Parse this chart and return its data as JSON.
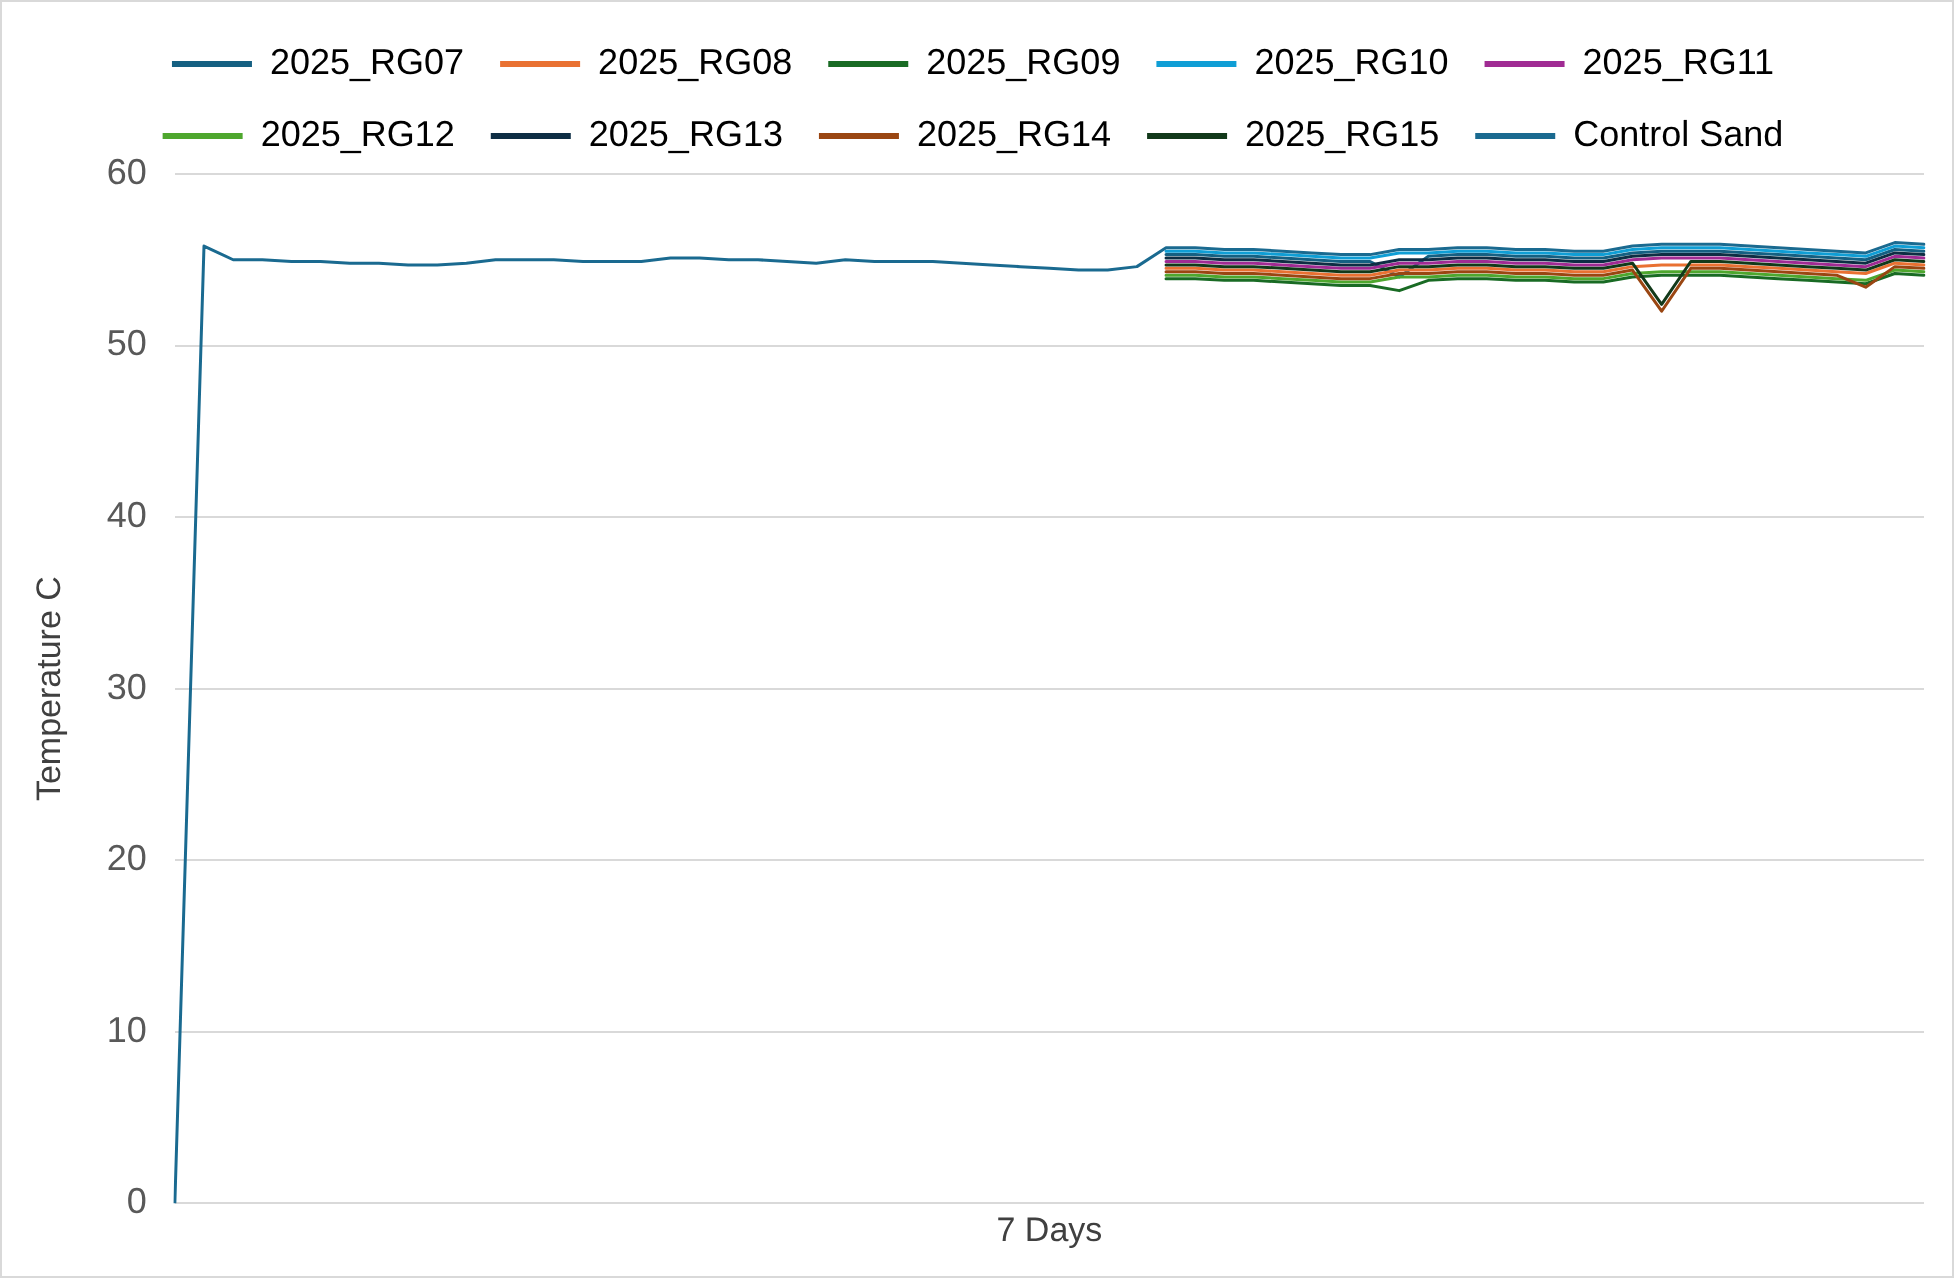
{
  "chart_data": {
    "type": "line",
    "ylabel": "Temperature C",
    "xlabel": "7 Days",
    "categories": [
      null,
      null,
      null,
      null,
      null,
      null,
      null,
      null,
      null,
      null,
      null,
      null,
      null,
      null,
      null,
      null,
      null,
      null,
      null,
      null,
      null,
      null,
      null,
      null,
      null,
      null,
      null,
      null,
      null,
      null,
      null,
      null,
      null,
      null,
      null,
      null,
      null,
      null,
      null,
      null,
      null,
      null,
      null,
      null,
      null,
      null,
      null,
      null,
      null,
      null,
      null,
      null,
      null,
      null,
      null,
      null,
      null,
      null,
      null,
      null,
      null
    ],
    "ylim": [
      0,
      60
    ],
    "yticks": [
      0,
      10,
      20,
      30,
      40,
      50,
      60
    ],
    "grid": "y",
    "legend": "top",
    "marker": "none",
    "line_style": "solid",
    "tick_labels": "y",
    "series": [
      {
        "name": "2025_RG07",
        "color": "#156082",
        "values": [
          null,
          null,
          null,
          null,
          null,
          null,
          null,
          null,
          null,
          null,
          null,
          null,
          null,
          null,
          null,
          null,
          null,
          null,
          null,
          null,
          null,
          null,
          null,
          null,
          null,
          null,
          null,
          null,
          null,
          null,
          null,
          null,
          null,
          null,
          55.3,
          55.3,
          55.2,
          55.2,
          55.1,
          55.0,
          54.9,
          54.9,
          54.0,
          55.2,
          55.3,
          55.3,
          55.2,
          55.2,
          55.1,
          55.1,
          55.4,
          55.5,
          55.5,
          55.5,
          55.4,
          55.3,
          55.2,
          55.1,
          55.0,
          55.6,
          55.5
        ]
      },
      {
        "name": "2025_RG08",
        "color": "#e97132",
        "values": [
          null,
          null,
          null,
          null,
          null,
          null,
          null,
          null,
          null,
          null,
          null,
          null,
          null,
          null,
          null,
          null,
          null,
          null,
          null,
          null,
          null,
          null,
          null,
          null,
          null,
          null,
          null,
          null,
          null,
          null,
          null,
          null,
          null,
          null,
          54.5,
          54.5,
          54.4,
          54.4,
          54.3,
          54.2,
          54.1,
          54.1,
          54.4,
          54.4,
          54.5,
          54.5,
          54.4,
          54.4,
          54.3,
          54.3,
          54.6,
          54.7,
          54.7,
          54.7,
          54.6,
          54.5,
          54.4,
          54.3,
          54.2,
          54.8,
          54.7
        ]
      },
      {
        "name": "2025_RG09",
        "color": "#196b24",
        "values": [
          null,
          null,
          null,
          null,
          null,
          null,
          null,
          null,
          null,
          null,
          null,
          null,
          null,
          null,
          null,
          null,
          null,
          null,
          null,
          null,
          null,
          null,
          null,
          null,
          null,
          null,
          null,
          null,
          null,
          null,
          null,
          null,
          null,
          null,
          53.9,
          53.9,
          53.8,
          53.8,
          53.7,
          53.6,
          53.5,
          53.5,
          53.2,
          53.8,
          53.9,
          53.9,
          53.8,
          53.8,
          53.7,
          53.7,
          54.0,
          54.1,
          54.1,
          54.1,
          54.0,
          53.9,
          53.8,
          53.7,
          53.6,
          54.2,
          54.1
        ]
      },
      {
        "name": "2025_RG10",
        "color": "#0f9ed5",
        "values": [
          null,
          null,
          null,
          null,
          null,
          null,
          null,
          null,
          null,
          null,
          null,
          null,
          null,
          null,
          null,
          null,
          null,
          null,
          null,
          null,
          null,
          null,
          null,
          null,
          null,
          null,
          null,
          null,
          null,
          null,
          null,
          null,
          null,
          null,
          55.5,
          55.5,
          55.4,
          55.4,
          55.3,
          55.2,
          55.1,
          55.1,
          55.4,
          55.4,
          55.5,
          55.5,
          55.4,
          55.4,
          55.3,
          55.3,
          55.6,
          55.7,
          55.7,
          55.7,
          55.6,
          55.5,
          55.4,
          55.3,
          55.2,
          55.8,
          55.7
        ]
      },
      {
        "name": "2025_RG11",
        "color": "#a02b93",
        "values": [
          null,
          null,
          null,
          null,
          null,
          null,
          null,
          null,
          null,
          null,
          null,
          null,
          null,
          null,
          null,
          null,
          null,
          null,
          null,
          null,
          null,
          null,
          null,
          null,
          null,
          null,
          null,
          null,
          null,
          null,
          null,
          null,
          null,
          null,
          54.9,
          54.9,
          54.8,
          54.8,
          54.7,
          54.6,
          54.5,
          54.5,
          54.8,
          54.8,
          54.9,
          54.9,
          54.8,
          54.8,
          54.7,
          54.7,
          55.0,
          55.1,
          55.1,
          55.1,
          55.0,
          54.9,
          54.8,
          54.7,
          54.6,
          55.2,
          55.1
        ]
      },
      {
        "name": "2025_RG12",
        "color": "#4ea72e",
        "values": [
          null,
          null,
          null,
          null,
          null,
          null,
          null,
          null,
          null,
          null,
          null,
          null,
          null,
          null,
          null,
          null,
          null,
          null,
          null,
          null,
          null,
          null,
          null,
          null,
          null,
          null,
          null,
          null,
          null,
          null,
          null,
          null,
          null,
          null,
          54.1,
          54.1,
          54.0,
          54.0,
          53.9,
          53.8,
          53.7,
          53.7,
          54.0,
          54.0,
          54.1,
          54.1,
          54.0,
          54.0,
          53.9,
          53.9,
          54.2,
          54.3,
          54.3,
          54.3,
          54.2,
          54.1,
          54.0,
          53.9,
          53.8,
          54.4,
          54.3
        ]
      },
      {
        "name": "2025_RG13",
        "color": "#0e2e44",
        "values": [
          null,
          null,
          null,
          null,
          null,
          null,
          null,
          null,
          null,
          null,
          null,
          null,
          null,
          null,
          null,
          null,
          null,
          null,
          null,
          null,
          null,
          null,
          null,
          null,
          null,
          null,
          null,
          null,
          null,
          null,
          null,
          null,
          null,
          null,
          55.1,
          55.1,
          55.0,
          55.0,
          54.9,
          54.8,
          54.7,
          54.7,
          55.0,
          55.0,
          55.1,
          55.1,
          55.0,
          55.0,
          54.9,
          54.9,
          55.2,
          55.3,
          55.3,
          55.3,
          55.2,
          55.1,
          55.0,
          54.9,
          54.8,
          55.4,
          55.3
        ]
      },
      {
        "name": "2025_RG14",
        "color": "#9a4612",
        "values": [
          null,
          null,
          null,
          null,
          null,
          null,
          null,
          null,
          null,
          null,
          null,
          null,
          null,
          null,
          null,
          null,
          null,
          null,
          null,
          null,
          null,
          null,
          null,
          null,
          null,
          null,
          null,
          null,
          null,
          null,
          null,
          null,
          null,
          null,
          54.3,
          54.3,
          54.2,
          54.2,
          54.1,
          54.0,
          53.9,
          53.9,
          54.2,
          54.2,
          54.3,
          54.3,
          54.2,
          54.2,
          54.1,
          54.1,
          54.4,
          52.0,
          54.5,
          54.5,
          54.4,
          54.3,
          54.2,
          54.1,
          53.4,
          54.6,
          54.5
        ]
      },
      {
        "name": "2025_RG15",
        "color": "#12391a",
        "values": [
          null,
          null,
          null,
          null,
          null,
          null,
          null,
          null,
          null,
          null,
          null,
          null,
          null,
          null,
          null,
          null,
          null,
          null,
          null,
          null,
          null,
          null,
          null,
          null,
          null,
          null,
          null,
          null,
          null,
          null,
          null,
          null,
          null,
          null,
          54.7,
          54.7,
          54.6,
          54.6,
          54.5,
          54.4,
          54.3,
          54.3,
          54.6,
          54.6,
          54.7,
          54.7,
          54.6,
          54.6,
          54.5,
          54.5,
          54.8,
          52.4,
          54.9,
          54.9,
          54.8,
          54.7,
          54.6,
          54.5,
          54.4,
          55.0,
          54.9
        ]
      },
      {
        "name": "Control Sand",
        "color": "#1a6a90",
        "values": [
          0,
          55.8,
          55.0,
          55.0,
          54.9,
          54.9,
          54.8,
          54.8,
          54.7,
          54.7,
          54.8,
          55.0,
          55.0,
          55.0,
          54.9,
          54.9,
          54.9,
          55.1,
          55.1,
          55.0,
          55.0,
          54.9,
          54.8,
          55.0,
          54.9,
          54.9,
          54.9,
          54.8,
          54.7,
          54.6,
          54.5,
          54.4,
          54.4,
          54.6,
          55.7,
          55.7,
          55.6,
          55.6,
          55.5,
          55.4,
          55.3,
          55.3,
          55.6,
          55.6,
          55.7,
          55.7,
          55.6,
          55.6,
          55.5,
          55.5,
          55.8,
          55.9,
          55.9,
          55.9,
          55.8,
          55.7,
          55.6,
          55.5,
          55.4,
          56.0,
          55.9
        ]
      }
    ]
  }
}
